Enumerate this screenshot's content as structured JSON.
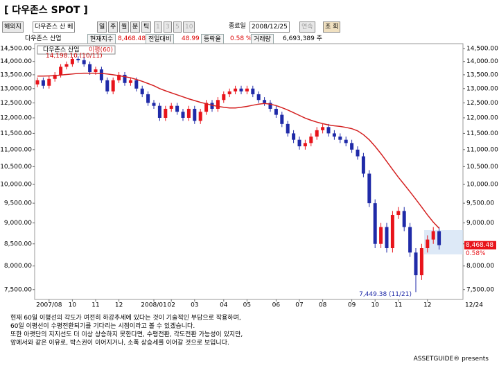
{
  "title": "[ 다우존스 SPOT ]",
  "toolbar": {
    "market": "해외지",
    "symbol": "다우존스 산 베",
    "periods": [
      "일",
      "주",
      "월",
      "분",
      "틱"
    ],
    "intervals": [
      "1",
      "3",
      "5",
      "10"
    ],
    "end_label": "종료일",
    "end_date": "2008/12/25",
    "continuous": "연속",
    "query": "조 회"
  },
  "quote": {
    "name": "다우존스 산업",
    "price_label": "현재지수",
    "price": "8,468.48",
    "change_label": "전일대비",
    "change": "48.99",
    "rate_label": "등락율",
    "rate": "0.58 %",
    "volume_label": "거래량",
    "volume": "6,693,389 주"
  },
  "chart_data": {
    "type": "candlestick",
    "log_scale": true,
    "grid": false,
    "ylim": [
      7300,
      14700
    ],
    "yticks": [
      {
        "value": 14500,
        "label": "14,500.00"
      },
      {
        "value": 14000,
        "label": "14,000.00"
      },
      {
        "value": 13500,
        "label": "13,500.00"
      },
      {
        "value": 13000,
        "label": "13,000.00"
      },
      {
        "value": 12500,
        "label": "12,500.00"
      },
      {
        "value": 12000,
        "label": "12,000.00"
      },
      {
        "value": 11500,
        "label": "11,500.00"
      },
      {
        "value": 11000,
        "label": "11,000.00"
      },
      {
        "value": 10500,
        "label": "10,500.00"
      },
      {
        "value": 10000,
        "label": "10,000.00"
      },
      {
        "value": 9500,
        "label": "9,500.00"
      },
      {
        "value": 9000,
        "label": "9,000.00"
      },
      {
        "value": 8500,
        "label": "8,500.00"
      },
      {
        "value": 8000,
        "label": "8,000.00"
      },
      {
        "value": 7500,
        "label": "7,500.00"
      }
    ],
    "xticks": [
      {
        "value": 2,
        "label": "2007/08"
      },
      {
        "value": 6,
        "label": "10"
      },
      {
        "value": 10,
        "label": "11"
      },
      {
        "value": 14,
        "label": "12"
      },
      {
        "value": 20,
        "label": "2008/01"
      },
      {
        "value": 23,
        "label": "02"
      },
      {
        "value": 27,
        "label": "03"
      },
      {
        "value": 32,
        "label": "04"
      },
      {
        "value": 36,
        "label": "05"
      },
      {
        "value": 41,
        "label": "06"
      },
      {
        "value": 45,
        "label": "07"
      },
      {
        "value": 49,
        "label": "08"
      },
      {
        "value": 54,
        "label": "09"
      },
      {
        "value": 58,
        "label": "10"
      },
      {
        "value": 62,
        "label": "11"
      },
      {
        "value": 67,
        "label": "12"
      }
    ],
    "x_end_label": "12/24",
    "series": [
      {
        "name": "다우존스 산업",
        "type": "candlestick",
        "up_color": "#e8141b",
        "down_color": "#1f2aa8",
        "open": [
          13150,
          13300,
          13100,
          13350,
          13500,
          13800,
          13900,
          14100,
          14050,
          13900,
          13600,
          13700,
          13300,
          12900,
          13300,
          13500,
          13200,
          13300,
          13000,
          12800,
          12500,
          12400,
          12000,
          12300,
          12400,
          12200,
          12000,
          12300,
          11900,
          12200,
          12500,
          12300,
          12600,
          12800,
          12900,
          13000,
          12900,
          13000,
          12800,
          12600,
          12500,
          12300,
          12100,
          11800,
          11500,
          11300,
          11100,
          11200,
          11400,
          11600,
          11700,
          11500,
          11400,
          11300,
          11200,
          11000,
          10800,
          10300,
          9500,
          8500,
          8900,
          8400,
          9200,
          9300,
          8900,
          8300,
          7800,
          8400,
          8600,
          8800
        ],
        "high": [
          13400,
          13400,
          13450,
          13600,
          13900,
          14000,
          14150,
          14198.1,
          14150,
          14000,
          13800,
          13800,
          13400,
          13400,
          13600,
          13600,
          13400,
          13400,
          13100,
          12900,
          12600,
          12500,
          12400,
          12500,
          12500,
          12300,
          12400,
          12400,
          12300,
          12600,
          12600,
          12700,
          12900,
          13000,
          13100,
          13100,
          13100,
          13100,
          12900,
          12700,
          12600,
          12400,
          12200,
          11900,
          11600,
          11400,
          11300,
          11500,
          11700,
          11800,
          11800,
          11600,
          11500,
          11400,
          11300,
          11100,
          10900,
          10400,
          9600,
          9000,
          9000,
          9300,
          9400,
          9400,
          9000,
          8400,
          8500,
          8700,
          8900,
          8900
        ],
        "low": [
          13050,
          13000,
          13000,
          13250,
          13400,
          13700,
          13800,
          13950,
          13800,
          13500,
          13500,
          13200,
          12800,
          12800,
          13200,
          13100,
          13100,
          12900,
          12700,
          12400,
          12300,
          11900,
          11900,
          12200,
          12100,
          11900,
          11900,
          11800,
          11800,
          12100,
          12200,
          12200,
          12500,
          12700,
          12800,
          12800,
          12800,
          12700,
          12500,
          12400,
          12200,
          12000,
          11700,
          11400,
          11200,
          11000,
          11000,
          11100,
          11300,
          11500,
          11400,
          11300,
          11200,
          11100,
          10900,
          10700,
          10200,
          9400,
          8400,
          8400,
          8300,
          8300,
          9100,
          8800,
          8200,
          7449.38,
          7700,
          8300,
          8500,
          8368
        ],
        "close": [
          13300,
          13100,
          13350,
          13500,
          13800,
          13900,
          14100,
          14050,
          13900,
          13600,
          13700,
          13300,
          12900,
          13300,
          13500,
          13200,
          13300,
          13000,
          12800,
          12500,
          12400,
          12000,
          12300,
          12400,
          12200,
          12000,
          12300,
          11900,
          12200,
          12500,
          12300,
          12600,
          12800,
          12900,
          13000,
          12900,
          13000,
          12800,
          12600,
          12500,
          12300,
          12100,
          11800,
          11500,
          11300,
          11100,
          11200,
          11400,
          11600,
          11700,
          11500,
          11400,
          11300,
          11200,
          11000,
          10800,
          10300,
          9500,
          8500,
          8900,
          8400,
          9200,
          9300,
          8900,
          8300,
          7800,
          8400,
          8600,
          8800,
          8468.48
        ]
      },
      {
        "name": "이평(60)",
        "type": "line",
        "color": "#d42020",
        "values": [
          13450,
          13450,
          13460,
          13470,
          13490,
          13510,
          13530,
          13550,
          13560,
          13560,
          13560,
          13550,
          13530,
          13500,
          13470,
          13430,
          13390,
          13330,
          13260,
          13180,
          13100,
          13000,
          12920,
          12850,
          12780,
          12710,
          12640,
          12580,
          12520,
          12470,
          12420,
          12380,
          12350,
          12330,
          12330,
          12350,
          12380,
          12420,
          12460,
          12480,
          12460,
          12410,
          12340,
          12260,
          12170,
          12080,
          11990,
          11920,
          11860,
          11810,
          11770,
          11740,
          11720,
          11690,
          11650,
          11580,
          11460,
          11300,
          11100,
          10880,
          10650,
          10420,
          10200,
          10000,
          9800,
          9600,
          9400,
          9200,
          9020,
          8870
        ]
      }
    ],
    "annotations": [
      {
        "text": "14,198.10 (10/11)"
      },
      {
        "text": "7,449.38 (11/21)"
      }
    ],
    "last_label": "8,468.48",
    "last_change": "0.58%"
  },
  "commentary": [
    "현재 60일 이평선의 각도가 여전히 하강추세에 있다는 것이 기술적인 부담으로 작용하며,",
    "60일 이평선이 수평전환되기를 기다리는 시점이라고 볼 수 있겠습니다.",
    "또한 아랫단의 지지선도 더 이상 상승하지 못한다면, 수평전환, 각도전환 가능성이 있지만,",
    "앞에서와 같은 이유로, 박스권이 이어지거나, 소폭 상승세를 이어갈 것으로 보입니다."
  ],
  "credit": "ASSETGUIDE® presents"
}
